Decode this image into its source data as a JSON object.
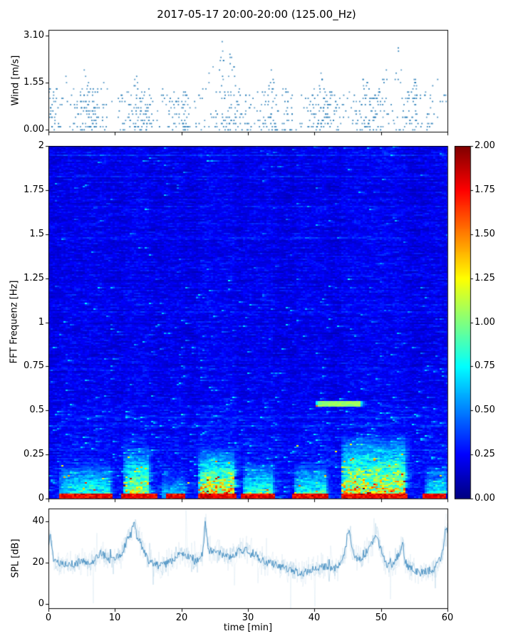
{
  "title": "2017-05-17 20:00-20:00 (125.00_Hz)",
  "xlabel": "time [min]",
  "xticks": [
    0,
    10,
    20,
    30,
    40,
    50,
    60
  ],
  "xtick_labels": [
    "0",
    "10",
    "20",
    "30",
    "40",
    "50",
    "60"
  ],
  "chart_data": [
    {
      "type": "scatter",
      "panel": "top",
      "ylabel": "Wind [m/s]",
      "yticks": [
        0,
        1.55,
        3.1
      ],
      "ytick_labels": [
        "0.00",
        "1.55",
        "3.10"
      ],
      "ylim": [
        -0.06,
        3.28
      ],
      "xlim": [
        0,
        60
      ],
      "marker_color": "#1f77b4",
      "quantization_step": 0.1033,
      "description": "Quantized wind-speed samples 0-3.1 m/s; dense band below 1.5 m/s with gust clusters, sparse gaps near listed times",
      "base_max": 1.35,
      "gusts": [
        {
          "t": 2.5,
          "max": 1.8
        },
        {
          "t": 5.5,
          "max": 2.0
        },
        {
          "t": 8,
          "max": 1.7
        },
        {
          "t": 13,
          "max": 2.2
        },
        {
          "t": 16,
          "max": 1.8
        },
        {
          "t": 24.5,
          "max": 2.6
        },
        {
          "t": 26,
          "max": 3.1
        },
        {
          "t": 27.5,
          "max": 2.8
        },
        {
          "t": 31,
          "max": 2.0
        },
        {
          "t": 33.5,
          "max": 2.1
        },
        {
          "t": 38,
          "max": 1.8
        },
        {
          "t": 41,
          "max": 1.9
        },
        {
          "t": 44.5,
          "max": 1.8
        },
        {
          "t": 47.5,
          "max": 2.3
        },
        {
          "t": 50.5,
          "max": 2.5
        },
        {
          "t": 52.5,
          "max": 2.9
        },
        {
          "t": 55,
          "max": 1.8
        },
        {
          "t": 58,
          "max": 2.5
        }
      ],
      "gaps": [
        9.6,
        21.7,
        34.8,
        56.3
      ]
    },
    {
      "type": "heatmap",
      "panel": "middle",
      "ylabel": "FFT Frequenz [Hz]",
      "yticks": [
        0,
        0.25,
        0.5,
        0.75,
        1,
        1.25,
        1.5,
        1.75,
        2
      ],
      "ytick_labels": [
        "0",
        "0.25",
        "0.5",
        "0.75",
        "1",
        "1.25",
        "1.5",
        "1.75",
        "2"
      ],
      "ylim": [
        0,
        2
      ],
      "xlim": [
        0,
        60
      ],
      "colormap": "jet",
      "colorbar": {
        "vmin": 0,
        "vmax": 2,
        "tick_labels": [
          "2.00",
          "1.75",
          "1.50",
          "1.25",
          "1.00",
          "0.75",
          "0.50",
          "0.25",
          "0.00"
        ]
      },
      "background_level": 0.2,
      "description": "Field mostly 0.1-0.4 (dark/mid blue) with horizontal streak texture; energy concentrated below ~0.4 Hz in time-localized bursts; near-0 Hz band saturated red; isolated cyan line near 0.54 Hz at 40-47 min",
      "bursts": [
        {
          "t0": 1.5,
          "t1": 9.2,
          "fmax": 0.22,
          "amp": 0.9
        },
        {
          "t0": 11.3,
          "t1": 15.2,
          "fmax": 0.32,
          "amp": 1.3
        },
        {
          "t0": 17,
          "t1": 20.5,
          "fmax": 0.15,
          "amp": 0.6
        },
        {
          "t0": 22.4,
          "t1": 27.8,
          "fmax": 0.3,
          "amp": 1.6
        },
        {
          "t0": 29.3,
          "t1": 33.6,
          "fmax": 0.22,
          "amp": 1.0
        },
        {
          "t0": 36.8,
          "t1": 41.6,
          "fmax": 0.22,
          "amp": 0.9
        },
        {
          "t0": 43.8,
          "t1": 53.6,
          "fmax": 0.38,
          "amp": 1.5
        },
        {
          "t0": 56.4,
          "t1": 59.6,
          "fmax": 0.2,
          "amp": 0.8
        }
      ],
      "bottom_band": {
        "fmax": 0.035,
        "amp": 1.9,
        "segments": [
          [
            1.5,
            9.5
          ],
          [
            11,
            16.5
          ],
          [
            17.5,
            20.5
          ],
          [
            22.4,
            28.2
          ],
          [
            29,
            34
          ],
          [
            36.5,
            42
          ],
          [
            43.8,
            54
          ],
          [
            56,
            59.6
          ]
        ]
      },
      "cyan_line": {
        "f": 0.54,
        "t0": 40,
        "t1": 47,
        "value": 1.05
      }
    },
    {
      "type": "line",
      "panel": "bottom",
      "ylabel": "SPL [dB]",
      "yticks": [
        0,
        20,
        40
      ],
      "ytick_labels": [
        "0",
        "20",
        "40"
      ],
      "ylim": [
        -2,
        46
      ],
      "xlim": [
        0,
        60
      ],
      "color": "#1f77b4",
      "x_minutes": "0..60 step 1",
      "values": [
        27,
        20,
        19,
        20,
        19,
        21,
        20,
        21,
        25,
        21,
        22,
        24,
        32,
        36,
        28,
        21,
        19,
        18,
        20,
        22,
        25,
        23,
        20,
        24,
        26,
        25,
        24,
        23,
        24,
        26,
        26,
        24,
        21,
        20,
        19,
        18,
        17,
        16,
        14,
        16,
        17,
        18,
        18,
        17,
        19,
        30,
        23,
        21,
        26,
        31,
        26,
        18,
        20,
        26,
        18,
        16,
        15,
        16,
        17,
        22,
        33
      ],
      "spikes": [
        {
          "t": 0.3,
          "v": 34
        },
        {
          "t": 12.9,
          "v": 40
        },
        {
          "t": 23.6,
          "v": 39
        },
        {
          "t": 45.2,
          "v": 36
        },
        {
          "t": 49.4,
          "v": 34
        },
        {
          "t": 53.2,
          "v": 29
        },
        {
          "t": 59.8,
          "v": 37
        }
      ]
    }
  ]
}
